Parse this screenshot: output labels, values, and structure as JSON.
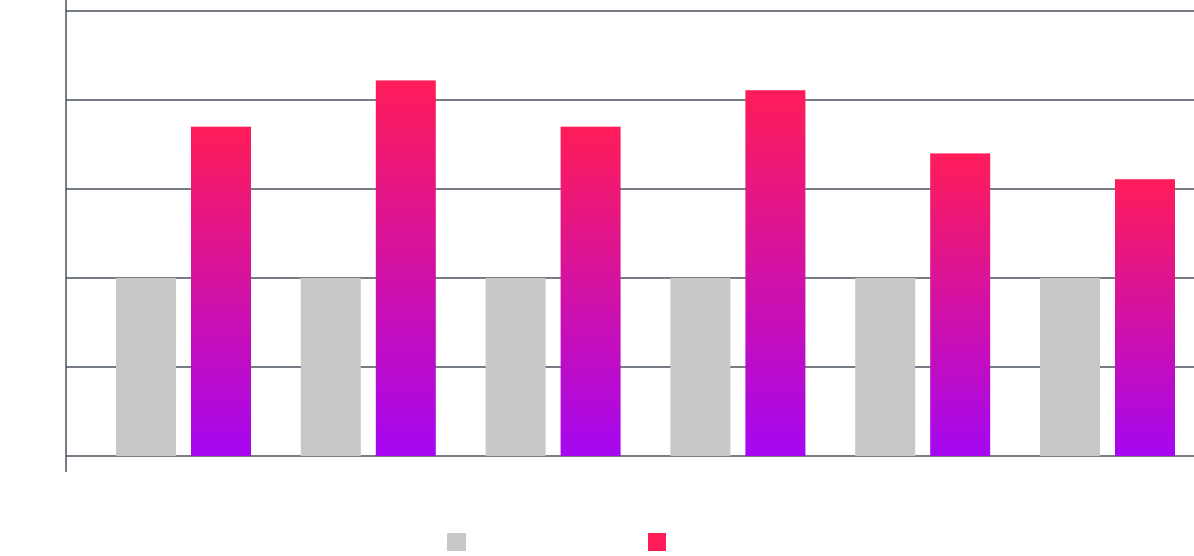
{
  "chart_data": {
    "type": "bar",
    "title": "",
    "xlabel": "",
    "ylabel": "",
    "categories": [
      "",
      "",
      "",
      "",
      "",
      ""
    ],
    "ylim": [
      0,
      5
    ],
    "gridlines": [
      0,
      1,
      2,
      3,
      4,
      5
    ],
    "grid": true,
    "legend_position": "bottom-center",
    "series": [
      {
        "values": [
          2,
          2,
          2,
          2,
          2,
          2
        ],
        "color": "#c8c9c7"
      },
      {
        "values": [
          3.7,
          4.22,
          3.7,
          4.11,
          3.4,
          3.11
        ],
        "color_top": "#ff1c58",
        "color_bottom": "#a507f1"
      }
    ],
    "data_labels": [
      "",
      "",
      "",
      "",
      "",
      ""
    ]
  }
}
